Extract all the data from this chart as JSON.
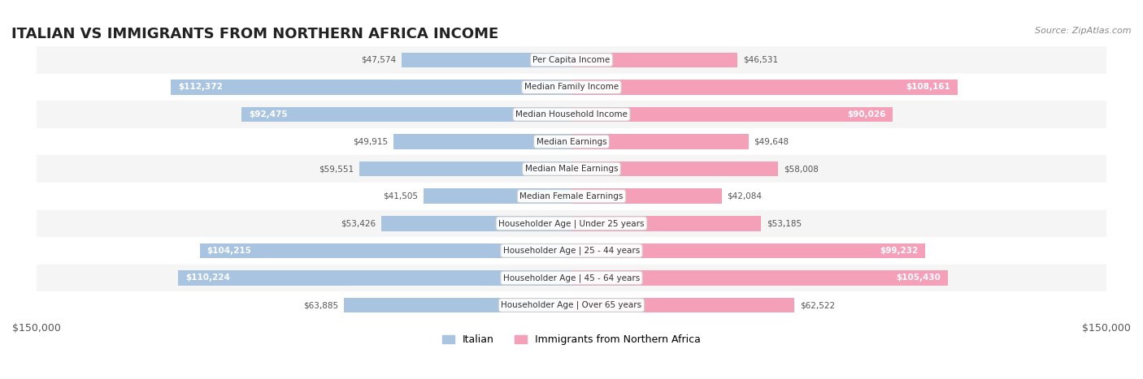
{
  "title": "ITALIAN VS IMMIGRANTS FROM NORTHERN AFRICA INCOME",
  "source": "Source: ZipAtlas.com",
  "categories": [
    "Per Capita Income",
    "Median Family Income",
    "Median Household Income",
    "Median Earnings",
    "Median Male Earnings",
    "Median Female Earnings",
    "Householder Age | Under 25 years",
    "Householder Age | 25 - 44 years",
    "Householder Age | 45 - 64 years",
    "Householder Age | Over 65 years"
  ],
  "italian_values": [
    47574,
    112372,
    92475,
    49915,
    59551,
    41505,
    53426,
    104215,
    110224,
    63885
  ],
  "immigrant_values": [
    46531,
    108161,
    90026,
    49648,
    58008,
    42084,
    53185,
    99232,
    105430,
    62522
  ],
  "italian_labels": [
    "$47,574",
    "$112,372",
    "$92,475",
    "$49,915",
    "$59,551",
    "$41,505",
    "$53,426",
    "$104,215",
    "$110,224",
    "$63,885"
  ],
  "immigrant_labels": [
    "$46,531",
    "$108,161",
    "$90,026",
    "$49,648",
    "$58,008",
    "$42,084",
    "$53,185",
    "$99,232",
    "$105,430",
    "$62,522"
  ],
  "italian_color": "#a8c4e0",
  "italian_color_dark": "#6fa8d8",
  "immigrant_color": "#f4a0b8",
  "immigrant_color_dark": "#f07898",
  "italian_label_inside_color": "#ffffff",
  "immigrant_label_inside_color": "#ffffff",
  "italian_label_outside_color": "#555555",
  "immigrant_label_outside_color": "#555555",
  "max_value": 150000,
  "bar_height": 0.55,
  "legend_italian": "Italian",
  "legend_immigrant": "Immigrants from Northern Africa",
  "background_color": "#ffffff",
  "row_bg_even": "#f5f5f5",
  "row_bg_odd": "#ffffff",
  "inside_label_threshold": 70000
}
